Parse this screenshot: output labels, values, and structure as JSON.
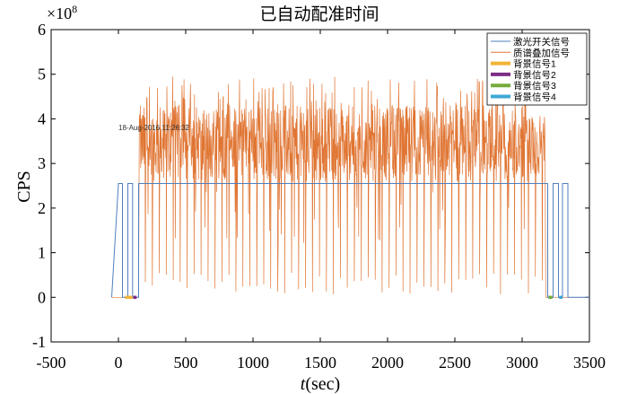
{
  "chart_data": {
    "type": "line",
    "title": "已自动配准时间",
    "xlabel_italic": "t",
    "xlabel_rest": "(sec)",
    "ylabel": "CPS",
    "y_exponent_label": "×10",
    "y_exponent_power": "8",
    "annotation": "18-Aug-2016 11:26:32",
    "annotation_at": [
      0,
      3.75
    ],
    "xlim": [
      -500,
      3500
    ],
    "ylim": [
      -1,
      6
    ],
    "x_ticks": [
      -500,
      0,
      500,
      1000,
      1500,
      2000,
      2500,
      3000,
      3500
    ],
    "y_ticks": [
      -1,
      0,
      1,
      2,
      3,
      4,
      5,
      6
    ],
    "grid": false,
    "legend_position": "top-right",
    "switch_level": 2.55,
    "switch_segments": [
      [
        -50,
        0
      ],
      [
        0,
        2.55
      ],
      [
        30,
        2.55
      ],
      [
        30,
        0
      ],
      [
        70,
        0
      ],
      [
        70,
        2.55
      ],
      [
        105,
        2.55
      ],
      [
        105,
        0
      ],
      [
        150,
        0
      ],
      [
        150,
        2.55
      ],
      [
        3190,
        2.55
      ],
      [
        3190,
        0
      ],
      [
        3230,
        0
      ],
      [
        3230,
        2.55
      ],
      [
        3270,
        2.55
      ],
      [
        3270,
        0
      ],
      [
        3300,
        0
      ],
      [
        3300,
        2.55
      ],
      [
        3340,
        2.55
      ],
      [
        3340,
        0
      ],
      [
        3500,
        0
      ]
    ],
    "mass_envelope": {
      "baseline_before": [
        -50,
        150
      ],
      "baseline_after": [
        3175,
        3500
      ],
      "start_peak": [
        150,
        4.1
      ],
      "typical_range": [
        2.6,
        4.3
      ],
      "max_peak": 4.95,
      "dip_count": 58,
      "dip_start": 200,
      "dip_end": 3150
    },
    "legend": [
      {
        "name": "激光开关信号",
        "color": "#4f7fbf",
        "style": "line"
      },
      {
        "name": "质谱叠加信号",
        "color": "#e07533",
        "style": "line"
      },
      {
        "name": "背景信号1",
        "color": "#f1b434",
        "style": "thick"
      },
      {
        "name": "背景信号2",
        "color": "#7d2d86",
        "style": "thick"
      },
      {
        "name": "背景信号3",
        "color": "#76ab3c",
        "style": "thick"
      },
      {
        "name": "背景信号4",
        "color": "#3fa8d6",
        "style": "thick"
      }
    ],
    "background_segments": [
      {
        "series": 0,
        "x": [
          50,
          105
        ]
      },
      {
        "series": 1,
        "x": [
          110,
          135
        ]
      },
      {
        "series": 2,
        "x": [
          3195,
          3225
        ]
      },
      {
        "series": 3,
        "x": [
          3275,
          3300
        ]
      }
    ]
  }
}
